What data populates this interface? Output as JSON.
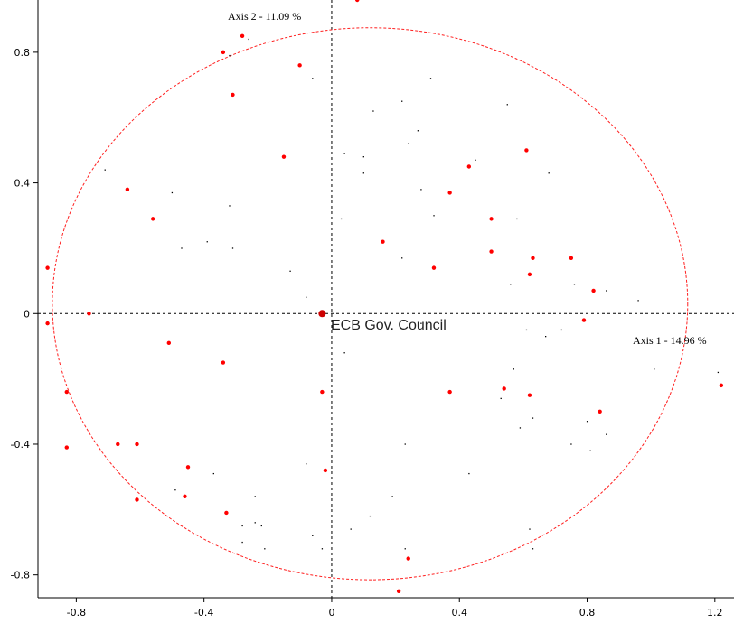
{
  "chart_data": {
    "type": "scatter",
    "title": "",
    "xlim": [
      -0.92,
      1.26
    ],
    "ylim": [
      -0.87,
      0.96
    ],
    "x_ticks": [
      -0.8,
      -0.4,
      0,
      0.4,
      0.8,
      1.2
    ],
    "y_ticks": [
      -0.8,
      -0.4,
      0,
      0.4,
      0.8
    ],
    "x_tick_labels": [
      "-0.8",
      "-0.4",
      "0",
      "0.4",
      "0.8",
      "1.2"
    ],
    "y_tick_labels": [
      "-0.8",
      "-0.4",
      "0",
      "0.4",
      "0.8"
    ],
    "grid": false,
    "axis1_label": "Axis 1  -  14.96 %",
    "axis2_label": "Axis 2  -  11.09 %",
    "center_label": "ECB Gov. Council",
    "center_point": {
      "x": -0.03,
      "y": 0
    },
    "ellipse": {
      "cx": 0.12,
      "cy": 0.03,
      "rx": 0.995,
      "ry": 0.845
    },
    "colors": {
      "points": "#ff0000",
      "ellipse": "#ff2020",
      "small_points": "#000000",
      "center": "#cc0000"
    },
    "red_points": [
      {
        "x": 0.08,
        "y": 0.96
      },
      {
        "x": -0.28,
        "y": 0.85
      },
      {
        "x": -0.34,
        "y": 0.8
      },
      {
        "x": -0.1,
        "y": 0.76
      },
      {
        "x": -0.31,
        "y": 0.67
      },
      {
        "x": -0.15,
        "y": 0.48
      },
      {
        "x": -0.64,
        "y": 0.38
      },
      {
        "x": -0.56,
        "y": 0.29
      },
      {
        "x": -0.89,
        "y": 0.14
      },
      {
        "x": -0.76,
        "y": 0.0
      },
      {
        "x": -0.89,
        "y": -0.03
      },
      {
        "x": -0.51,
        "y": -0.09
      },
      {
        "x": -0.34,
        "y": -0.15
      },
      {
        "x": -0.83,
        "y": -0.24
      },
      {
        "x": -0.83,
        "y": -0.41
      },
      {
        "x": -0.67,
        "y": -0.4
      },
      {
        "x": -0.61,
        "y": -0.4
      },
      {
        "x": -0.45,
        "y": -0.47
      },
      {
        "x": -0.46,
        "y": -0.56
      },
      {
        "x": -0.61,
        "y": -0.57
      },
      {
        "x": -0.33,
        "y": -0.61
      },
      {
        "x": -0.03,
        "y": -0.24
      },
      {
        "x": -0.02,
        "y": -0.48
      },
      {
        "x": 0.24,
        "y": -0.75
      },
      {
        "x": 0.21,
        "y": -0.85
      },
      {
        "x": 0.16,
        "y": 0.22
      },
      {
        "x": 0.32,
        "y": 0.14
      },
      {
        "x": 0.37,
        "y": 0.37
      },
      {
        "x": 0.43,
        "y": 0.45
      },
      {
        "x": 0.5,
        "y": 0.29
      },
      {
        "x": 0.5,
        "y": 0.19
      },
      {
        "x": 0.61,
        "y": 0.5
      },
      {
        "x": 0.62,
        "y": 0.12
      },
      {
        "x": 0.63,
        "y": 0.17
      },
      {
        "x": 0.75,
        "y": 0.17
      },
      {
        "x": 0.82,
        "y": 0.07
      },
      {
        "x": 0.79,
        "y": -0.02
      },
      {
        "x": 0.37,
        "y": -0.24
      },
      {
        "x": 0.54,
        "y": -0.23
      },
      {
        "x": 0.62,
        "y": -0.25
      },
      {
        "x": 0.84,
        "y": -0.3
      },
      {
        "x": 1.22,
        "y": -0.22
      }
    ],
    "small_points": [
      {
        "x": -0.26,
        "y": 0.84
      },
      {
        "x": -0.32,
        "y": 0.79
      },
      {
        "x": -0.06,
        "y": 0.72
      },
      {
        "x": 0.31,
        "y": 0.72
      },
      {
        "x": 0.13,
        "y": 0.62
      },
      {
        "x": 0.22,
        "y": 0.65
      },
      {
        "x": 0.55,
        "y": 0.64
      },
      {
        "x": 0.27,
        "y": 0.56
      },
      {
        "x": 0.24,
        "y": 0.52
      },
      {
        "x": 0.04,
        "y": 0.49
      },
      {
        "x": 0.1,
        "y": 0.48
      },
      {
        "x": 0.45,
        "y": 0.47
      },
      {
        "x": -0.71,
        "y": 0.44
      },
      {
        "x": 0.1,
        "y": 0.43
      },
      {
        "x": 0.68,
        "y": 0.43
      },
      {
        "x": -0.5,
        "y": 0.37
      },
      {
        "x": 0.28,
        "y": 0.38
      },
      {
        "x": -0.32,
        "y": 0.33
      },
      {
        "x": 0.03,
        "y": 0.29
      },
      {
        "x": 0.32,
        "y": 0.3
      },
      {
        "x": 0.58,
        "y": 0.29
      },
      {
        "x": -0.39,
        "y": 0.22
      },
      {
        "x": -0.31,
        "y": 0.2
      },
      {
        "x": -0.47,
        "y": 0.2
      },
      {
        "x": 0.22,
        "y": 0.17
      },
      {
        "x": -0.13,
        "y": 0.13
      },
      {
        "x": 0.56,
        "y": 0.09
      },
      {
        "x": 0.76,
        "y": 0.09
      },
      {
        "x": -0.08,
        "y": 0.05
      },
      {
        "x": 0.86,
        "y": 0.07
      },
      {
        "x": 0.96,
        "y": 0.04
      },
      {
        "x": 0.61,
        "y": -0.05
      },
      {
        "x": 0.67,
        "y": -0.07
      },
      {
        "x": 0.72,
        "y": -0.05
      },
      {
        "x": 0.28,
        "y": -0.03
      },
      {
        "x": 0.04,
        "y": -0.12
      },
      {
        "x": 0.57,
        "y": -0.17
      },
      {
        "x": 1.01,
        "y": -0.17
      },
      {
        "x": 1.21,
        "y": -0.18
      },
      {
        "x": 0.53,
        "y": -0.26
      },
      {
        "x": 0.63,
        "y": -0.32
      },
      {
        "x": 0.8,
        "y": -0.33
      },
      {
        "x": 0.59,
        "y": -0.35
      },
      {
        "x": 0.86,
        "y": -0.37
      },
      {
        "x": 0.75,
        "y": -0.4
      },
      {
        "x": 0.23,
        "y": -0.4
      },
      {
        "x": 0.81,
        "y": -0.42
      },
      {
        "x": -0.08,
        "y": -0.46
      },
      {
        "x": 0.43,
        "y": -0.49
      },
      {
        "x": -0.37,
        "y": -0.49
      },
      {
        "x": -0.49,
        "y": -0.54
      },
      {
        "x": 0.19,
        "y": -0.56
      },
      {
        "x": -0.24,
        "y": -0.56
      },
      {
        "x": 0.12,
        "y": -0.62
      },
      {
        "x": -0.24,
        "y": -0.64
      },
      {
        "x": -0.22,
        "y": -0.65
      },
      {
        "x": -0.28,
        "y": -0.65
      },
      {
        "x": 0.06,
        "y": -0.66
      },
      {
        "x": 0.62,
        "y": -0.66
      },
      {
        "x": -0.28,
        "y": -0.7
      },
      {
        "x": -0.06,
        "y": -0.68
      },
      {
        "x": 0.63,
        "y": -0.72
      },
      {
        "x": -0.21,
        "y": -0.72
      },
      {
        "x": -0.03,
        "y": -0.72
      },
      {
        "x": 0.23,
        "y": -0.72
      }
    ]
  }
}
